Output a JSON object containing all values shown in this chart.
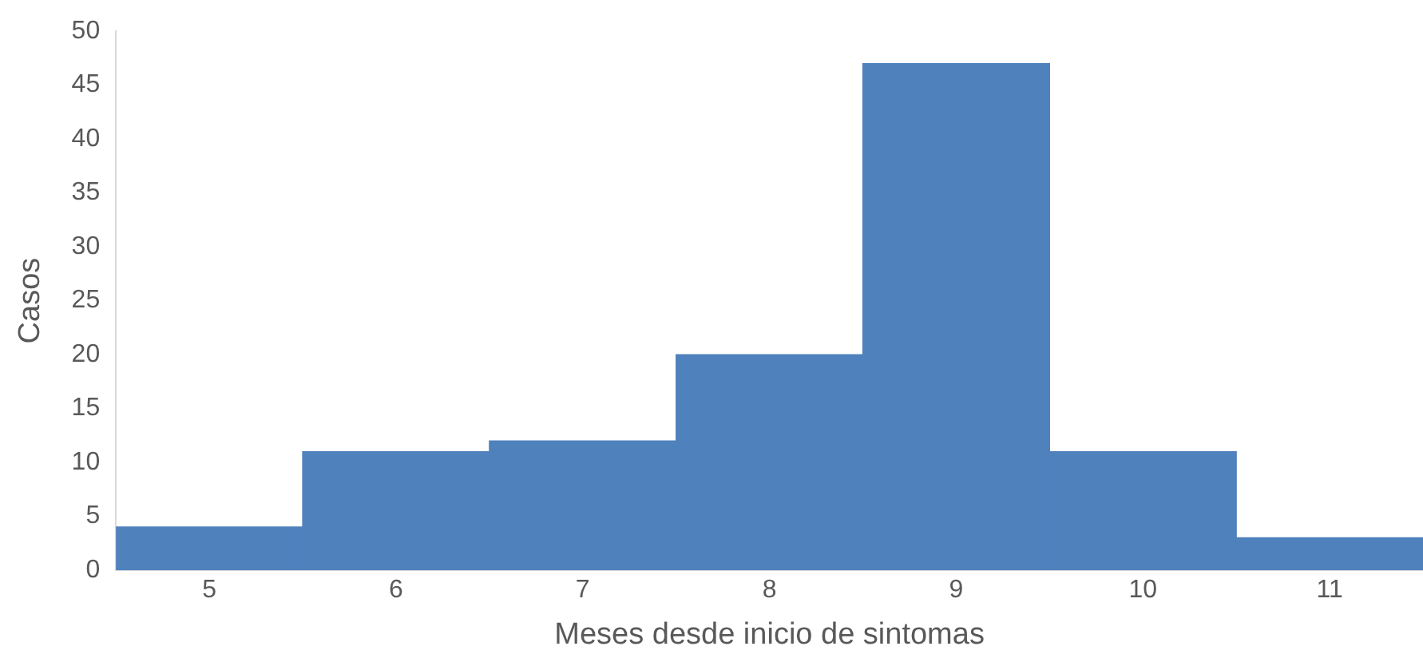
{
  "chart_data": {
    "type": "histogram",
    "xlabel": "Meses desde inicio de sintomas",
    "ylabel": "Casos",
    "bins": [
      4.5,
      5.5,
      6.5,
      7.5,
      8.5,
      9.5,
      10.5,
      11.5
    ],
    "values": [
      4,
      11,
      12,
      20,
      47,
      11,
      3
    ],
    "color": "#4f81bd",
    "xlim": [
      4.5,
      11.5
    ],
    "xticks": [
      5,
      6,
      7,
      8,
      9,
      10,
      11
    ],
    "ylim": [
      0,
      50
    ],
    "yticks": [
      0,
      5,
      10,
      15,
      20,
      25,
      30,
      35,
      40,
      45,
      50
    ],
    "grid": false,
    "legend": false
  }
}
